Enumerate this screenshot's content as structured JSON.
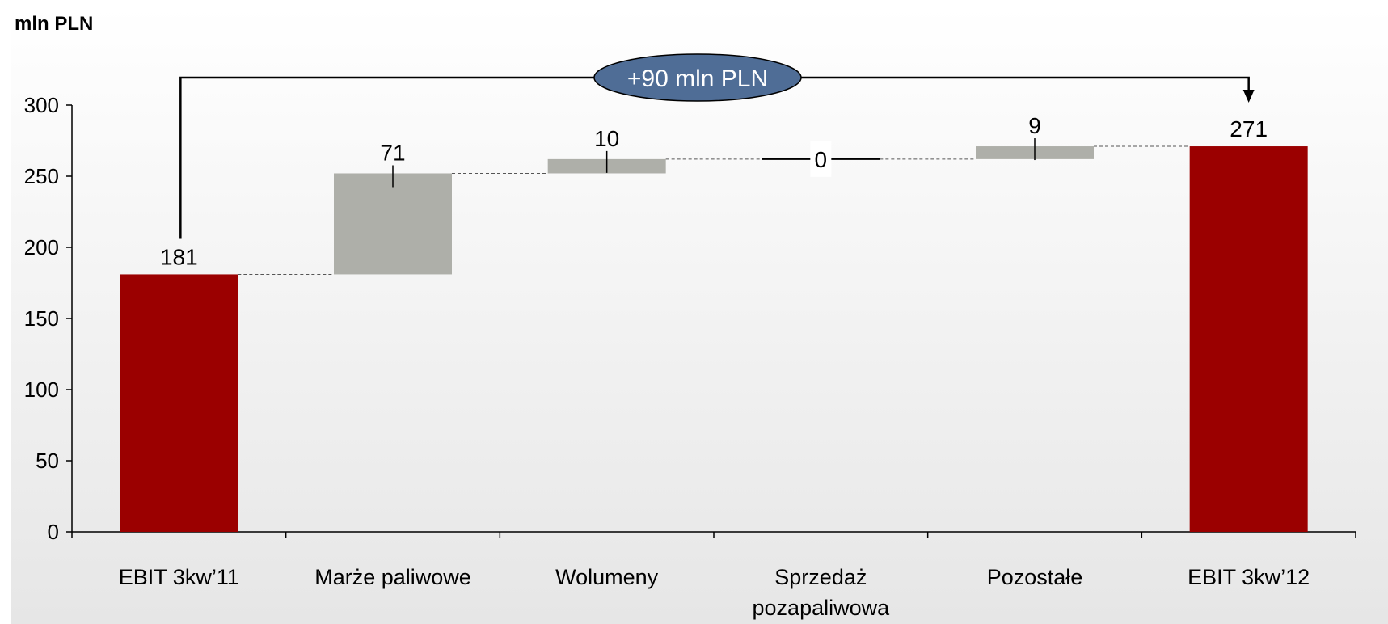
{
  "chart_data": {
    "type": "bar",
    "subtype": "waterfall",
    "unit_label": "mln PLN",
    "categories": [
      "EBIT 3kw’11",
      "Marże paliwowe",
      "Wolumeny",
      "Sprzedaż pozapaliwowa",
      "Pozostałe",
      "EBIT 3kw’12"
    ],
    "bar_kinds": [
      "total",
      "delta",
      "delta",
      "delta",
      "delta",
      "total"
    ],
    "values": [
      181,
      71,
      10,
      0,
      9,
      271
    ],
    "value_labels": [
      "181",
      "71",
      "10",
      "0",
      "9",
      "271"
    ],
    "ylim": [
      0,
      300
    ],
    "yticks": [
      "0",
      "50",
      "100",
      "150",
      "200",
      "250",
      "300"
    ],
    "grid": false,
    "annotation": {
      "text": "+90 mln PLN",
      "from_category": 0,
      "to_category": 5
    },
    "colors": {
      "total": "#9B0000",
      "delta": "#AEAFA9",
      "annotation_fill": "#4F6D96",
      "background_top": "#FFFFFF",
      "background_bottom": "#E6E6E6"
    }
  }
}
